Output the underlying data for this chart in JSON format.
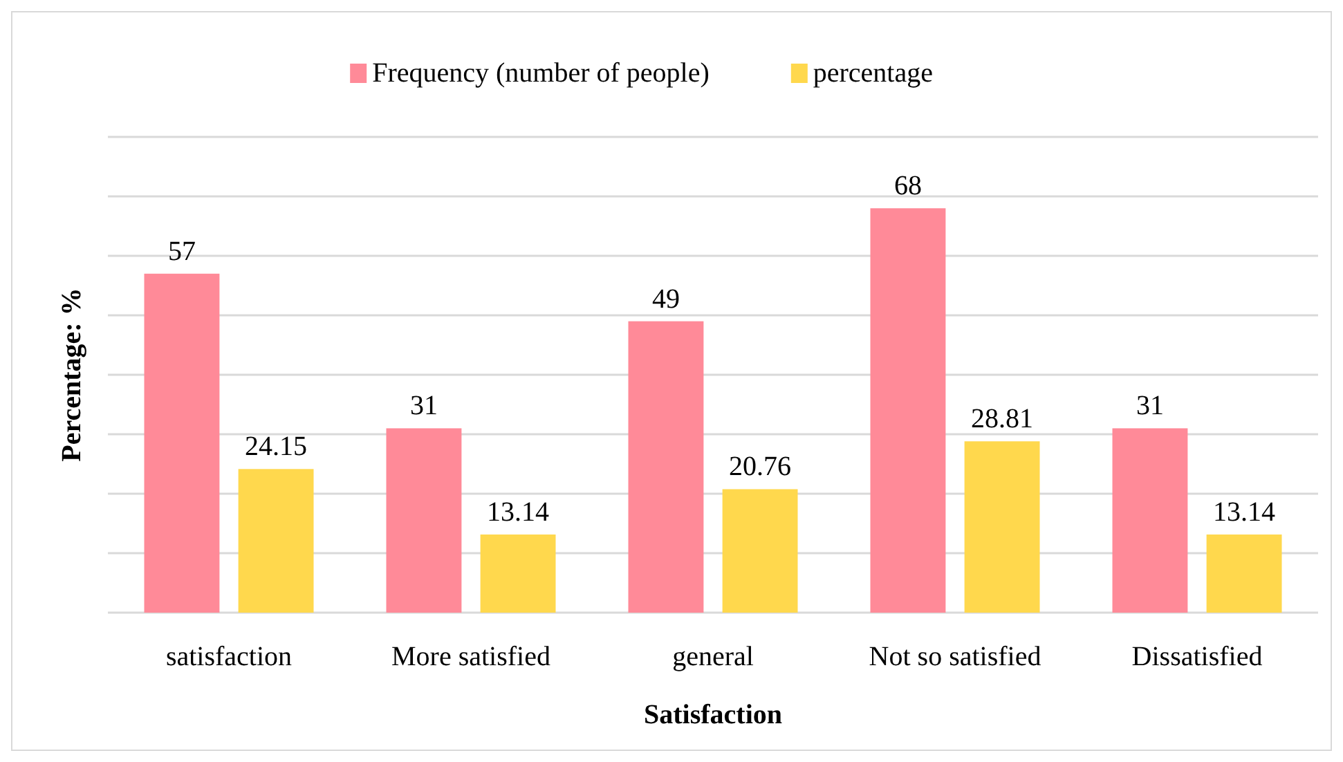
{
  "chart_data": {
    "type": "bar",
    "xlabel": "Satisfaction",
    "ylabel": "Percentage: %",
    "categories": [
      "satisfaction",
      "More satisfied",
      "general",
      "Not so satisfied",
      "Dissatisfied"
    ],
    "series": [
      {
        "name": "Frequency (number of people)",
        "color": "#ff8a98",
        "values": [
          57,
          31,
          49,
          68,
          31
        ]
      },
      {
        "name": "percentage",
        "color": "#ffd84d",
        "values": [
          24.15,
          13.14,
          20.76,
          28.81,
          13.14
        ]
      }
    ],
    "ylim": [
      0,
      80
    ],
    "yticks": [
      {
        "value": 0,
        "label": null
      },
      {
        "value": 10,
        "label": null
      },
      {
        "value": 20,
        "label": null
      },
      {
        "value": 30,
        "label": null
      },
      {
        "value": 40,
        "label": null
      },
      {
        "value": 50,
        "label": null
      },
      {
        "value": 60,
        "label": null
      },
      {
        "value": 70,
        "label": null
      },
      {
        "value": 80,
        "label": null
      }
    ],
    "grid": "y",
    "legend": "top",
    "data_labels": true
  }
}
